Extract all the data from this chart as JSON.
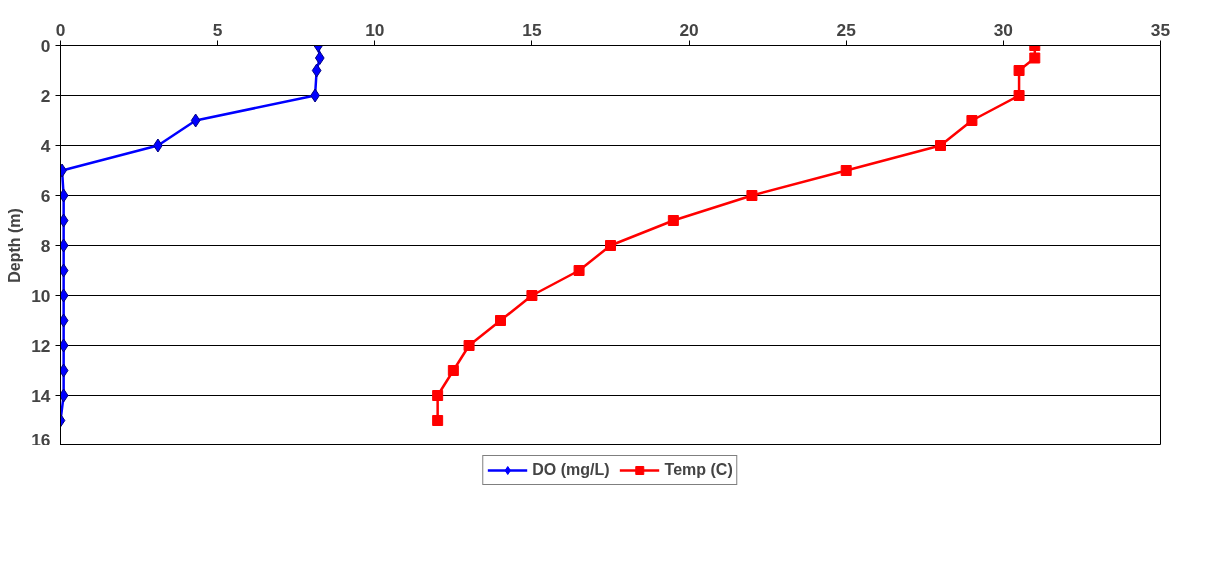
{
  "chart_data": {
    "type": "line",
    "ylabel": "Depth (m)",
    "xlim": [
      0,
      35
    ],
    "xticks": [
      0,
      5,
      10,
      15,
      20,
      25,
      30,
      35
    ],
    "ylim": [
      16,
      0
    ],
    "yticks": [
      0,
      2,
      4,
      6,
      8,
      10,
      12,
      14,
      16
    ],
    "grid": "y",
    "legend": "bottom",
    "line_style": "solid",
    "series": [
      {
        "name": "DO (mg/L)",
        "color": "#0000ff",
        "marker": "diamond",
        "x": [
          8.2,
          8.25,
          8.15,
          8.1,
          4.3,
          3.1,
          0.05,
          0.1,
          0.1,
          0.1,
          0.1,
          0.1,
          0.1,
          0.1,
          0.1,
          0.1,
          0
        ],
        "values": [
          0,
          0.5,
          1,
          2,
          3,
          4,
          5,
          6,
          7,
          8,
          9,
          10,
          11,
          12,
          13,
          14,
          15
        ]
      },
      {
        "name": "Temp (C)",
        "color": "#ff0000",
        "marker": "square",
        "x": [
          31,
          31,
          30.5,
          30.5,
          29,
          28,
          25,
          22,
          19.5,
          17.5,
          16.5,
          15,
          14,
          13,
          12.5,
          12,
          12
        ],
        "values": [
          0,
          0.5,
          1,
          2,
          3,
          4,
          5,
          6,
          7,
          8,
          9,
          10,
          11,
          12,
          13,
          14,
          15
        ]
      }
    ]
  }
}
